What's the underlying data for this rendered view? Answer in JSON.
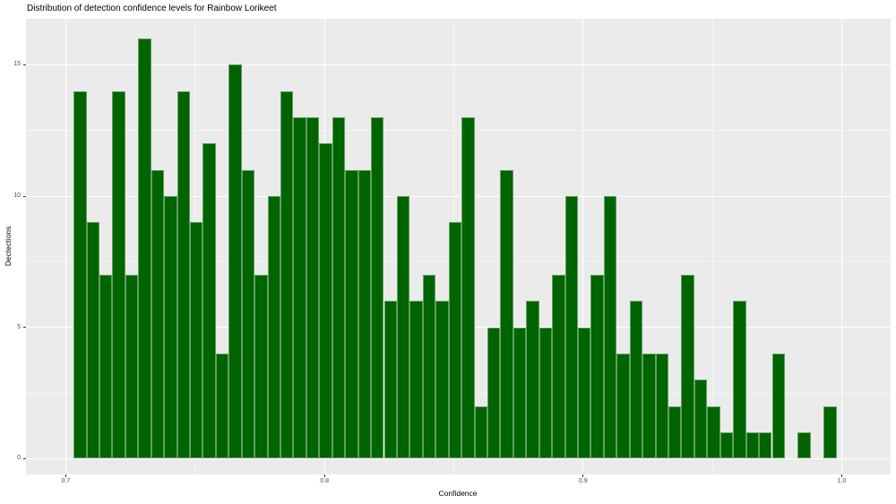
{
  "chart": {
    "title": "Distribution of detection confidence levels for Rainbow Lorikeet",
    "xlabel": "Confidence",
    "ylabel": "Dectections"
  },
  "chart_data": {
    "type": "bar",
    "subtype": "histogram",
    "title": "Distribution of detection confidence levels for Rainbow Lorikeet",
    "xlabel": "Confidence",
    "ylabel": "Dectections",
    "first_bin_start": 0.703,
    "bin_width": 0.005,
    "counts": [
      14,
      9,
      7,
      14,
      7,
      16,
      11,
      10,
      14,
      9,
      12,
      4,
      15,
      11,
      7,
      10,
      14,
      13,
      13,
      12,
      13,
      11,
      11,
      13,
      6,
      10,
      6,
      7,
      6,
      9,
      13,
      2,
      5,
      11,
      5,
      6,
      5,
      7,
      10,
      5,
      7,
      10,
      4,
      6,
      4,
      4,
      2,
      7,
      3,
      2,
      1,
      6,
      1,
      1,
      4,
      0,
      1,
      0,
      2
    ],
    "xlim": [
      0.6846,
      1.0189
    ],
    "ylim": [
      -0.6,
      16.75
    ],
    "x_ticks": [
      0.7,
      0.8,
      0.9,
      1.0
    ],
    "x_tick_labels": [
      "0.7",
      "0.8",
      "0.9",
      "1.0"
    ],
    "x_minor_ticks": [
      0.75,
      0.85,
      0.95
    ],
    "y_ticks": [
      0,
      5,
      10,
      15
    ],
    "y_tick_labels": [
      "0",
      "5",
      "10",
      "15"
    ],
    "y_minor_ticks": [
      2.5,
      7.5,
      12.5
    ],
    "grid": true,
    "legend_position": "none",
    "colors": {
      "bar_fill": "#006400",
      "bar_border": "rgba(255,255,255,0.38)",
      "panel_background": "#EBEBEB",
      "grid_major": "#FFFFFF",
      "grid_minor": "rgba(255,255,255,0.55)",
      "tick_label": "#4d4d4d",
      "tick_mark": "#333333",
      "title_text": "#000000"
    }
  }
}
